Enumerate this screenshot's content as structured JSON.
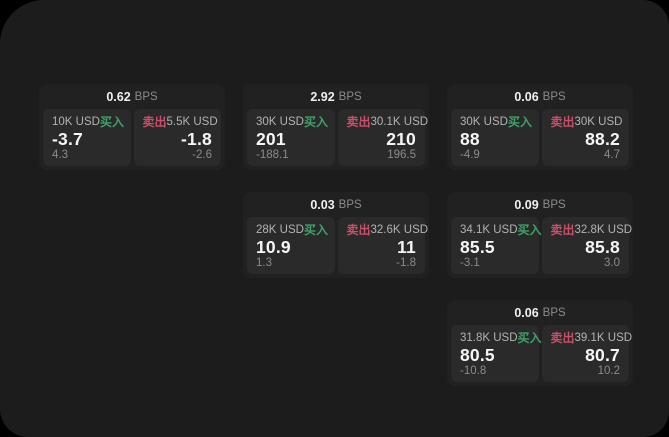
{
  "labels": {
    "buy": "买入",
    "sell": "卖出",
    "unit": "BPS"
  },
  "colors": {
    "background": "#000000",
    "panel": "#1c1c1c",
    "card": "#212121",
    "pane": "#2a2a2a",
    "buy": "#3fa169",
    "sell": "#c9506a",
    "value_text": "#f5f5f5",
    "muted_text": "#8b8b8b"
  },
  "cards": [
    {
      "bps": "0.62",
      "buy_amount": "10K USD",
      "buy_value": "-3.7",
      "buy_delta": "4.3",
      "sell_amount": "5.5K USD",
      "sell_value": "-1.8",
      "sell_delta": "-2.6"
    },
    {
      "bps": "2.92",
      "buy_amount": "30K USD",
      "buy_value": "201",
      "buy_delta": "-188.1",
      "sell_amount": "30.1K USD",
      "sell_value": "210",
      "sell_delta": "196.5"
    },
    {
      "bps": "0.06",
      "buy_amount": "30K USD",
      "buy_value": "88",
      "buy_delta": "-4.9",
      "sell_amount": "30K USD",
      "sell_value": "88.2",
      "sell_delta": "4.7"
    },
    {
      "bps": "0.03",
      "buy_amount": "28K USD",
      "buy_value": "10.9",
      "buy_delta": "1.3",
      "sell_amount": "32.6K USD",
      "sell_value": "11",
      "sell_delta": "-1.8"
    },
    {
      "bps": "0.09",
      "buy_amount": "34.1K USD",
      "buy_value": "85.5",
      "buy_delta": "-3.1",
      "sell_amount": "32.8K USD",
      "sell_value": "85.8",
      "sell_delta": "3.0"
    },
    {
      "bps": "0.06",
      "buy_amount": "31.8K USD",
      "buy_value": "80.5",
      "buy_delta": "-10.8",
      "sell_amount": "39.1K USD",
      "sell_value": "80.7",
      "sell_delta": "10.2"
    }
  ]
}
